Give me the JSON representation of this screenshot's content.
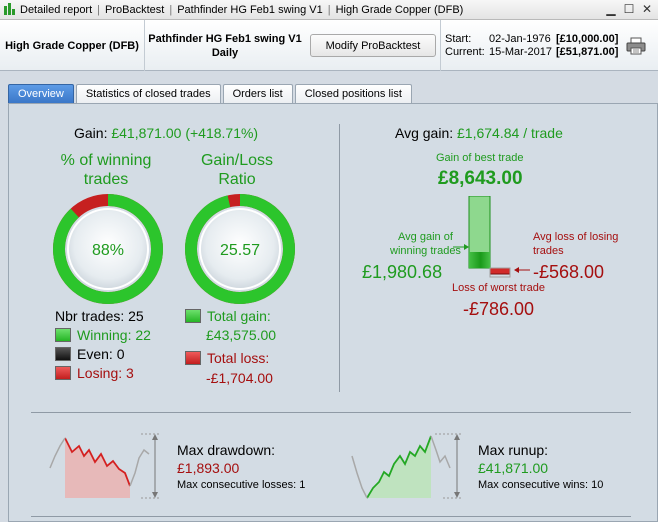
{
  "titlebar": {
    "crumbs": [
      "Detailed report",
      "ProBacktest",
      "Pathfinder HG Feb1 swing V1",
      "High Grade Copper (DFB)"
    ]
  },
  "header": {
    "instrument": "High Grade Copper (DFB)",
    "strategy": "Pathfinder HG Feb1 swing V1",
    "timeframe": "Daily",
    "modify_label": "Modify ProBacktest",
    "start_label": "Start:",
    "start_date": "02-Jan-1976",
    "start_value": "[£10,000.00]",
    "current_label": "Current:",
    "current_date": "15-Mar-2017",
    "current_value": "[£51,871.00]"
  },
  "tabs": [
    {
      "label": "Overview",
      "active": true
    },
    {
      "label": "Statistics of closed trades",
      "active": false
    },
    {
      "label": "Orders list",
      "active": false
    },
    {
      "label": "Closed positions list",
      "active": false
    }
  ],
  "overview": {
    "gain_label": "Gain:",
    "gain_value": "£41,871.00 (+418.71%)",
    "winning_title_1": "% of winning",
    "winning_title_2": "trades",
    "winning_pct_text": "88%",
    "winning_pct": 0.88,
    "ratio_title_1": "Gain/Loss",
    "ratio_title_2": "Ratio",
    "ratio_text": "25.57",
    "ratio_fill": 0.962,
    "nbr_trades": "Nbr trades: 25",
    "winning": "Winning: 22",
    "even": "Even: 0",
    "losing": "Losing: 3",
    "total_gain_label": "Total gain:",
    "total_gain": "£43,575.00",
    "total_loss_label": "Total loss:",
    "total_loss": "-£1,704.00"
  },
  "avg": {
    "title_label": "Avg gain:",
    "title_value": "£1,674.84 / trade",
    "best_label": "Gain of best trade",
    "best_value": "£8,643.00",
    "avg_win_label_1": "Avg gain of",
    "avg_win_label_2": "winning trades",
    "avg_win_value": "£1,980.68",
    "avg_loss_label_1": "Avg loss of losing",
    "avg_loss_label_2": "trades",
    "avg_loss_value": "-£568.00",
    "worst_label": "Loss of worst trade",
    "worst_value": "-£786.00"
  },
  "drawdown": {
    "label": "Max drawdown:",
    "value": "£1,893.00",
    "sub": "Max consecutive losses: 1"
  },
  "runup": {
    "label": "Max runup:",
    "value": "£41,871.00",
    "sub": "Max consecutive wins: 10"
  },
  "colors": {
    "green": "#1f9b1f",
    "red": "#a50f0f",
    "tab_active": "#3a77c8"
  }
}
